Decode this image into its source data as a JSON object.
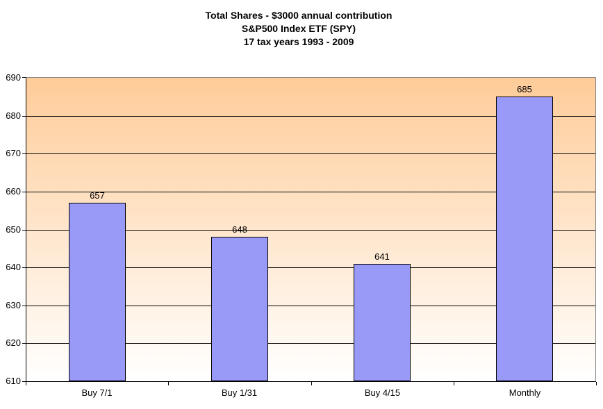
{
  "title": {
    "line1": "Total Shares - $3000 annual contribution",
    "line2": "S&P500 Index ETF (SPY)",
    "line3": "17 tax years 1993 - 2009"
  },
  "chart_data": {
    "type": "bar",
    "title": "Total Shares - $3000 annual contribution, S&P500 Index ETF (SPY), 17 tax years 1993 - 2009",
    "categories": [
      "Buy 7/1",
      "Buy 1/31",
      "Buy 4/15",
      "Monthly"
    ],
    "values": [
      657,
      648,
      641,
      685
    ],
    "data_labels": [
      "657",
      "648",
      "641",
      "685"
    ],
    "xlabel": "",
    "ylabel": "",
    "ylim": [
      610,
      690
    ],
    "yticks": [
      610,
      620,
      630,
      640,
      650,
      660,
      670,
      680,
      690
    ],
    "ytick_interval": 10,
    "grid": "horizontal",
    "legend": "none",
    "colors": {
      "bar_fill": "#9999F8",
      "bar_border": "#000000",
      "plot_bg_top": "#FFCC99",
      "plot_bg_bottom": "#FFFFFF",
      "gridline": "#000000",
      "plot_border_gray": "#848484",
      "axis_line": "#000000",
      "text": "#000000",
      "background": "#FFFFFF"
    }
  }
}
